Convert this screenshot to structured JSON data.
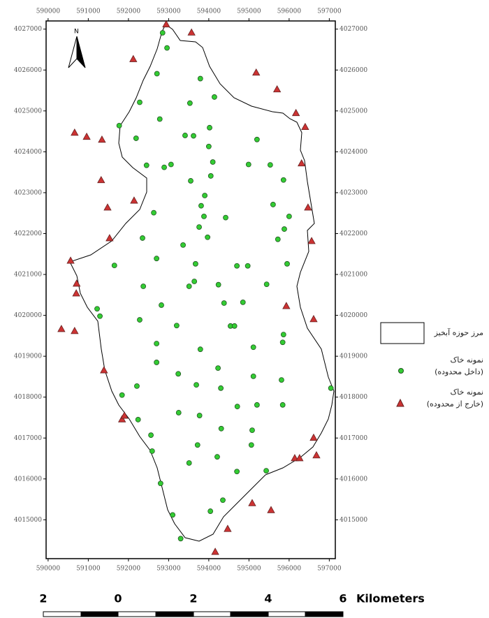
{
  "chart_data": {
    "type": "scatter",
    "xlim": [
      589950,
      597150
    ],
    "ylim": [
      4014050,
      4027200
    ],
    "xticks": [
      590000,
      591000,
      592000,
      593000,
      594000,
      595000,
      596000,
      597000
    ],
    "yticks": [
      4015000,
      4016000,
      4017000,
      4018000,
      4019000,
      4020000,
      4021000,
      4022000,
      4023000,
      4024000,
      4025000,
      4026000,
      4027000
    ],
    "north_label": "N",
    "boundary_label": "مرز حوزه آبخیز",
    "series": [
      {
        "name": "نمونه خاک\n(داخل محدوده)",
        "color": "#33cc33",
        "marker": "circle",
        "x": [
          592850,
          592960,
          592710,
          593790,
          594140,
          592280,
          593530,
          591770,
          592780,
          594020,
          592190,
          593410,
          593620,
          595200,
          594000,
          592450,
          593060,
          592890,
          594100,
          594990,
          593550,
          594050,
          593900,
          592630,
          593810,
          593880,
          594420,
          593760,
          592350,
          593360,
          593970,
          591650,
          592700,
          593670,
          594700,
          594970,
          592370,
          593510,
          593640,
          594240,
          594380,
          594850,
          595440,
          592820,
          591220,
          591290,
          592280,
          593200,
          594540,
          594640,
          592700,
          595110,
          595860,
          595840,
          593790,
          592700,
          593240,
          594230,
          595110,
          595810,
          592210,
          593690,
          594300,
          597040,
          591840,
          595200,
          595840,
          594710,
          592240,
          593250,
          593770,
          594310,
          595080,
          592560,
          592590,
          593720,
          595060,
          594210,
          593510,
          594700,
          595430,
          592800,
          594350,
          594040,
          593100,
          593300,
          595950,
          596000,
          595880,
          595720,
          595600,
          595860,
          595530
        ],
        "y": [
          4026910,
          4026540,
          4025910,
          4025790,
          4025340,
          4025210,
          4025190,
          4024640,
          4024800,
          4024590,
          4024330,
          4024400,
          4024390,
          4024300,
          4024130,
          4023670,
          4023690,
          4023620,
          4023750,
          4023690,
          4023290,
          4023410,
          4022930,
          4022510,
          4022680,
          4022420,
          4022390,
          4022160,
          4021890,
          4021720,
          4021910,
          4021220,
          4021390,
          4021260,
          4021210,
          4021210,
          4020710,
          4020710,
          4020830,
          4020750,
          4020300,
          4020320,
          4020760,
          4020250,
          4020160,
          4019980,
          4019890,
          4019750,
          4019740,
          4019740,
          4019310,
          4019220,
          4019530,
          4019340,
          4019170,
          4018850,
          4018570,
          4018710,
          4018510,
          4018420,
          4018270,
          4018300,
          4018220,
          4018220,
          4018050,
          4017810,
          4017810,
          4017770,
          4017450,
          4017620,
          4017550,
          4017230,
          4017190,
          4017070,
          4016680,
          4016830,
          4016830,
          4016540,
          4016390,
          4016180,
          4016200,
          4015890,
          4015480,
          4015210,
          4015120,
          4014540,
          4021260,
          4022420,
          4022110,
          4021860,
          4022710,
          4023310,
          4023680
        ]
      },
      {
        "name": "نمونه خاک\n(خارج از محدوده)",
        "color": "#cc3333",
        "marker": "triangle",
        "x": [
          592940,
          593570,
          592120,
          595180,
          595700,
          596170,
          596400,
          590660,
          590960,
          591340,
          591320,
          596310,
          592140,
          591480,
          596470,
          591530,
          596560,
          590560,
          590710,
          590700,
          595930,
          590330,
          590660,
          596610,
          591390,
          591840,
          591900,
          596610,
          596140,
          596260,
          596680,
          595080,
          595550,
          594470,
          594160
        ],
        "y": [
          4027120,
          4026920,
          4026270,
          4025940,
          4025530,
          4024950,
          4024610,
          4024470,
          4024370,
          4024300,
          4023310,
          4023720,
          4022810,
          4022640,
          4022640,
          4021890,
          4021820,
          4021340,
          4020780,
          4020540,
          4020230,
          4019670,
          4019620,
          4019910,
          4018660,
          4017460,
          4017550,
          4017010,
          4016510,
          4016510,
          4016580,
          4015410,
          4015240,
          4014780,
          4014220
        ]
      }
    ],
    "scale_bar": {
      "labels": [
        "2",
        "0",
        "2",
        "4",
        "6"
      ],
      "unit": "Kilometers"
    }
  }
}
